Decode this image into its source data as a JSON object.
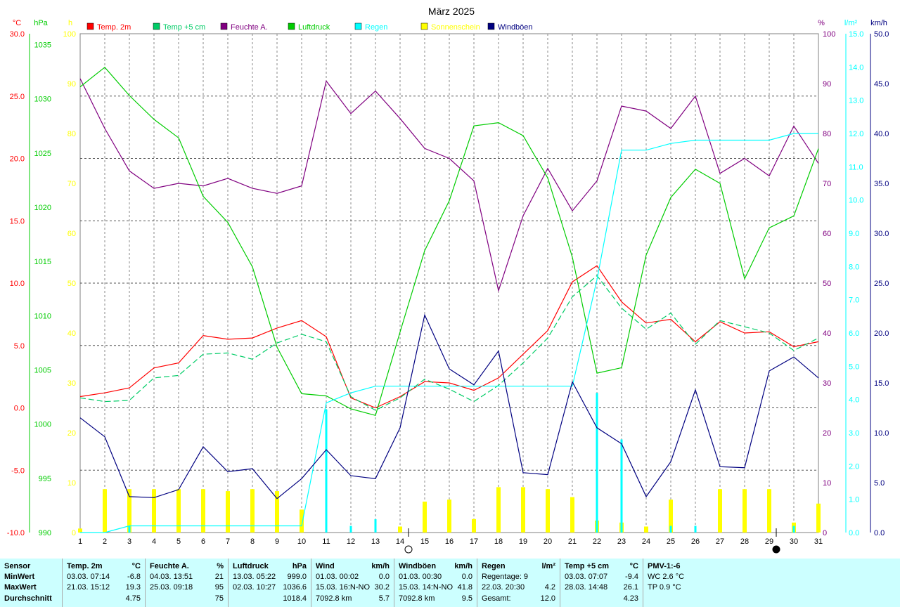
{
  "chart_data": {
    "type": "line",
    "title": "März 2025",
    "x": [
      1,
      2,
      3,
      4,
      5,
      6,
      7,
      8,
      9,
      10,
      11,
      12,
      13,
      14,
      15,
      16,
      17,
      18,
      19,
      20,
      21,
      22,
      23,
      24,
      25,
      26,
      27,
      28,
      29,
      30,
      31
    ],
    "legend": [
      {
        "name": "Temp. 2m",
        "color": "#ff0000"
      },
      {
        "name": "Temp +5 cm",
        "color": "#00cc66"
      },
      {
        "name": "Feuchte A.",
        "color": "#800080"
      },
      {
        "name": "Luftdruck",
        "color": "#00cc00"
      },
      {
        "name": "Regen",
        "color": "#00ffff"
      },
      {
        "name": "Sonnenschein",
        "color": "#ffff00"
      },
      {
        "name": "Windböen",
        "color": "#000080"
      }
    ],
    "axes": {
      "temp": {
        "unit": "°C",
        "ticks": [
          "30.0",
          "25.0",
          "20.0",
          "15.0",
          "10.0",
          "5.0",
          "0.0",
          "-5.0",
          "-10.0"
        ],
        "range": [
          -10,
          30
        ]
      },
      "pressure": {
        "unit": "hPa",
        "ticks": [
          "1035",
          "1030",
          "1025",
          "1020",
          "1015",
          "1010",
          "1005",
          "1000",
          "995",
          "990"
        ],
        "range": [
          990,
          1036
        ]
      },
      "sunshine": {
        "unit": "h",
        "ticks": [
          "100",
          "90",
          "80",
          "70",
          "60",
          "50",
          "40",
          "30",
          "20",
          "10",
          "0"
        ],
        "range": [
          0,
          100
        ]
      },
      "humidity": {
        "unit": "%",
        "ticks": [
          "100",
          "90",
          "80",
          "70",
          "60",
          "50",
          "40",
          "30",
          "20",
          "10",
          "0"
        ],
        "range": [
          0,
          100
        ]
      },
      "rain": {
        "unit": "l/m²",
        "ticks": [
          "15.0",
          "14.0",
          "13.0",
          "12.0",
          "11.0",
          "10.0",
          "9.0",
          "8.0",
          "7.0",
          "6.0",
          "5.0",
          "4.0",
          "3.0",
          "2.0",
          "1.0",
          "0.0"
        ],
        "range": [
          0,
          15
        ]
      },
      "wind": {
        "unit": "km/h",
        "ticks": [
          "50.0",
          "45.0",
          "40.0",
          "35.0",
          "30.0",
          "25.0",
          "20.0",
          "15.0",
          "10.0",
          "5.0",
          "0.0"
        ],
        "range": [
          0,
          50
        ]
      }
    },
    "series": [
      {
        "name": "Temp. 2m",
        "axis": "temp",
        "color": "#ff0000",
        "dash": false,
        "values": [
          0.9,
          1.2,
          1.6,
          3.2,
          3.6,
          5.8,
          5.5,
          5.6,
          6.4,
          7.0,
          5.7,
          0.8,
          0.0,
          0.9,
          2.1,
          2.0,
          1.4,
          2.4,
          4.3,
          6.2,
          10.1,
          11.4,
          8.5,
          6.8,
          7.1,
          5.3,
          6.9,
          6.0,
          6.1,
          4.9,
          5.3
        ]
      },
      {
        "name": "Temp +5 cm",
        "axis": "temp",
        "color": "#00cc66",
        "dash": true,
        "values": [
          0.8,
          0.5,
          0.6,
          2.4,
          2.6,
          4.3,
          4.4,
          3.9,
          5.2,
          5.9,
          5.3,
          0.9,
          -0.2,
          0.8,
          2.3,
          1.5,
          0.5,
          1.8,
          3.6,
          5.6,
          8.9,
          10.6,
          8.0,
          6.3,
          7.6,
          5.1,
          7.0,
          6.5,
          6.0,
          4.6,
          5.6
        ]
      },
      {
        "name": "Feuchte A.",
        "axis": "humidity",
        "color": "#800080",
        "dash": false,
        "values": [
          91,
          81,
          72.5,
          69,
          70,
          69.5,
          71,
          69,
          68,
          69.5,
          90.5,
          84,
          88.5,
          83,
          77,
          75,
          70.5,
          48.5,
          63.5,
          73,
          64.5,
          70.5,
          85.5,
          84.5,
          81,
          87.5,
          72,
          75,
          71.5,
          81.5,
          74
        ]
      },
      {
        "name": "Luftdruck",
        "axis": "pressure",
        "color": "#00cc00",
        "dash": false,
        "values": [
          1031.1,
          1032.9,
          1030.3,
          1028.1,
          1026.4,
          1021.0,
          1018.6,
          1014.5,
          1007.1,
          1002.8,
          1002.6,
          1001.4,
          1000.8,
          1008.5,
          1016.0,
          1020.6,
          1027.5,
          1027.8,
          1026.6,
          1022.7,
          1015.4,
          1004.7,
          1005.2,
          1015.6,
          1020.9,
          1023.5,
          1022.2,
          1013.4,
          1018.1,
          1019.2,
          1025.4
        ]
      },
      {
        "name": "Regen (Summe)",
        "axis": "rain",
        "color": "#00ffff",
        "dash": false,
        "values": [
          0.0,
          0.0,
          0.2,
          0.2,
          0.2,
          0.2,
          0.2,
          0.2,
          0.2,
          0.2,
          3.9,
          4.2,
          4.4,
          4.4,
          4.4,
          4.4,
          4.4,
          4.4,
          4.4,
          4.4,
          4.4,
          7.6,
          11.5,
          11.5,
          11.7,
          11.8,
          11.8,
          11.8,
          11.8,
          12.0,
          12.0
        ]
      },
      {
        "name": "Windböen",
        "axis": "wind",
        "color": "#000080",
        "dash": false,
        "values": [
          11.5,
          9.6,
          3.6,
          3.5,
          4.3,
          8.6,
          6.1,
          6.4,
          3.4,
          5.4,
          8.3,
          5.7,
          5.4,
          10.5,
          21.8,
          16.4,
          14.8,
          18.2,
          6.0,
          5.8,
          15.1,
          10.5,
          8.9,
          3.6,
          7.1,
          14.3,
          6.6,
          6.5,
          16.2,
          17.6,
          15.5
        ]
      }
    ],
    "bars": [
      {
        "name": "Sonnenschein",
        "axis": "sunshine",
        "color": "#ffff00",
        "values": [
          0.8,
          8.7,
          8.7,
          8.7,
          8.7,
          8.7,
          8.3,
          8.7,
          8.3,
          4.6,
          0,
          0,
          0,
          1.2,
          6.2,
          6.6,
          2.7,
          9.1,
          9.1,
          8.7,
          7.1,
          2.4,
          2.0,
          1.2,
          6.6,
          0,
          8.7,
          8.7,
          8.7,
          2.0,
          5.8
        ]
      },
      {
        "name": "Regen",
        "axis": "rain",
        "color": "#00ffff",
        "values": [
          0,
          0,
          0.2,
          0,
          0,
          0,
          0,
          0,
          0,
          0,
          3.7,
          0.2,
          0.4,
          0,
          0,
          0,
          0,
          0,
          0,
          0,
          0,
          4.2,
          2.8,
          0,
          0.2,
          0.2,
          0,
          0,
          0,
          0.2,
          0
        ]
      }
    ],
    "moon_markers": [
      {
        "day": 14,
        "phase": "Vollmond",
        "symbol": "○"
      },
      {
        "day": 29,
        "phase": "Neumond",
        "symbol": "●"
      }
    ]
  },
  "stats": {
    "rows": [
      "Sensor",
      "MinWert",
      "MaxWert",
      "Durchschnitt"
    ],
    "temp2m": {
      "title": "Temp. 2m",
      "unit": "°C",
      "min_time": "03.03.  07:14",
      "min": "-6.8",
      "max_time": "21.03.  15:12",
      "max": "19.3",
      "avg": "4.75"
    },
    "feuchte": {
      "title": "Feuchte A.",
      "unit": "%",
      "min_time": "04.03.  13:51",
      "min": "21",
      "max_time": "25.03.  09:18",
      "max": "95",
      "avg": "75"
    },
    "luftdruck": {
      "title": "Luftdruck",
      "unit": "hPa",
      "min_time": "13.03.  05:22",
      "min": "999.0",
      "max_time": "02.03.  10:27",
      "max": "1036.6",
      "avg": "1018.4"
    },
    "wind": {
      "title": "Wind",
      "unit": "km/h",
      "min_time": "01.03.  00:02",
      "min": "0.0",
      "max_time": "15.03.  16:N-NO",
      "max": "30.2",
      "avg_label": "7092.8 km",
      "avg": "5.7"
    },
    "windboeen": {
      "title": "Windböen",
      "unit": "km/h",
      "min_time": "01.03.  00:30",
      "min": "0.0",
      "max_time": "15.03.  14:N-NO",
      "max": "41.8",
      "avg_label": "7092.8 km",
      "avg": "9.5"
    },
    "regen": {
      "title": "Regen",
      "unit": "l/m²",
      "min_time": "Regentage: 9",
      "min": "",
      "max_time": "22.03.  20:30",
      "max": "4.2",
      "avg_label": "Gesamt:",
      "avg": "12.0"
    },
    "temp5": {
      "title": "Temp +5 cm",
      "unit": "°C",
      "min_time": "03.03.  07:07",
      "min": "-9.4",
      "max_time": "28.03.  14:48",
      "max": "26.1",
      "avg": "4.23"
    },
    "pmv": {
      "title": "PMV-1:-6",
      "line1": "WC 2.6 °C",
      "line2": "TP 0.9 °C"
    }
  }
}
